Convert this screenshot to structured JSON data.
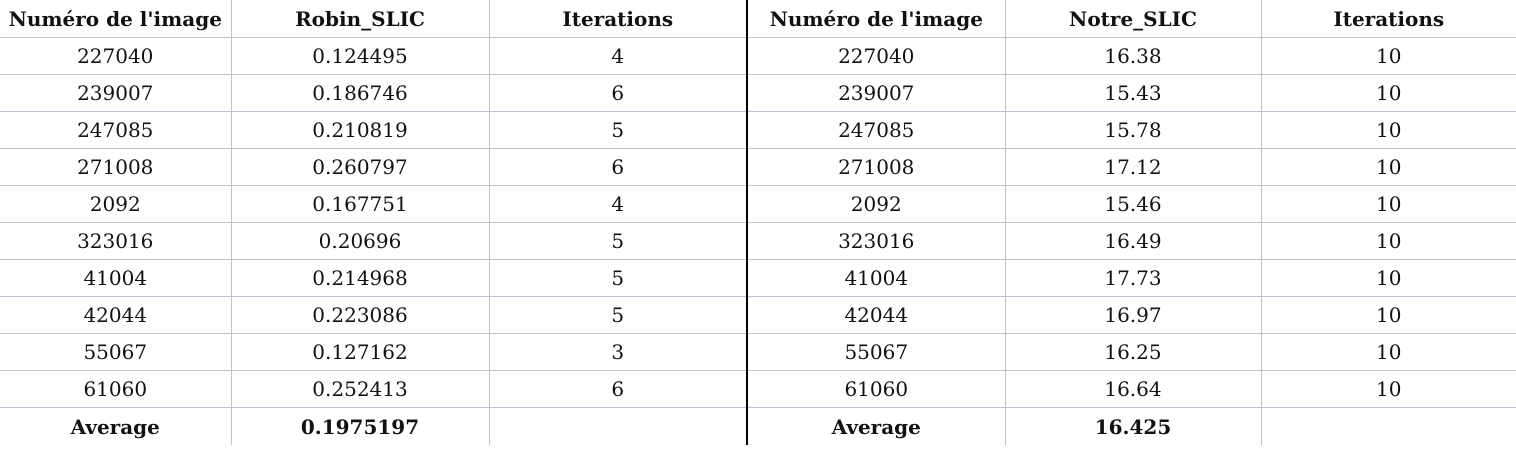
{
  "left": {
    "headers": [
      "Numéro de l'image",
      "Robin_SLIC",
      "Iterations"
    ],
    "rows": [
      [
        "227040",
        "0.124495",
        "4"
      ],
      [
        "239007",
        "0.186746",
        "6"
      ],
      [
        "247085",
        "0.210819",
        "5"
      ],
      [
        "271008",
        "0.260797",
        "6"
      ],
      [
        "2092",
        "0.167751",
        "4"
      ],
      [
        "323016",
        "0.20696",
        "5"
      ],
      [
        "41004",
        "0.214968",
        "5"
      ],
      [
        "42044",
        "0.223086",
        "5"
      ],
      [
        "55067",
        "0.127162",
        "3"
      ],
      [
        "61060",
        "0.252413",
        "6"
      ]
    ],
    "average_label": "Average",
    "average_value": "0.1975197"
  },
  "right": {
    "headers": [
      "Numéro de l'image",
      "Notre_SLIC",
      "Iterations"
    ],
    "rows": [
      [
        "227040",
        "16.38",
        "10"
      ],
      [
        "239007",
        "15.43",
        "10"
      ],
      [
        "247085",
        "15.78",
        "10"
      ],
      [
        "271008",
        "17.12",
        "10"
      ],
      [
        "2092",
        "15.46",
        "10"
      ],
      [
        "323016",
        "16.49",
        "10"
      ],
      [
        "41004",
        "17.73",
        "10"
      ],
      [
        "42044",
        "16.97",
        "10"
      ],
      [
        "55067",
        "16.25",
        "10"
      ],
      [
        "61060",
        "16.64",
        "10"
      ]
    ],
    "average_label": "Average",
    "average_value": "16.425"
  },
  "colors": {
    "grid": "#bcc3d0",
    "divider": "#000000",
    "text": "#111111"
  }
}
